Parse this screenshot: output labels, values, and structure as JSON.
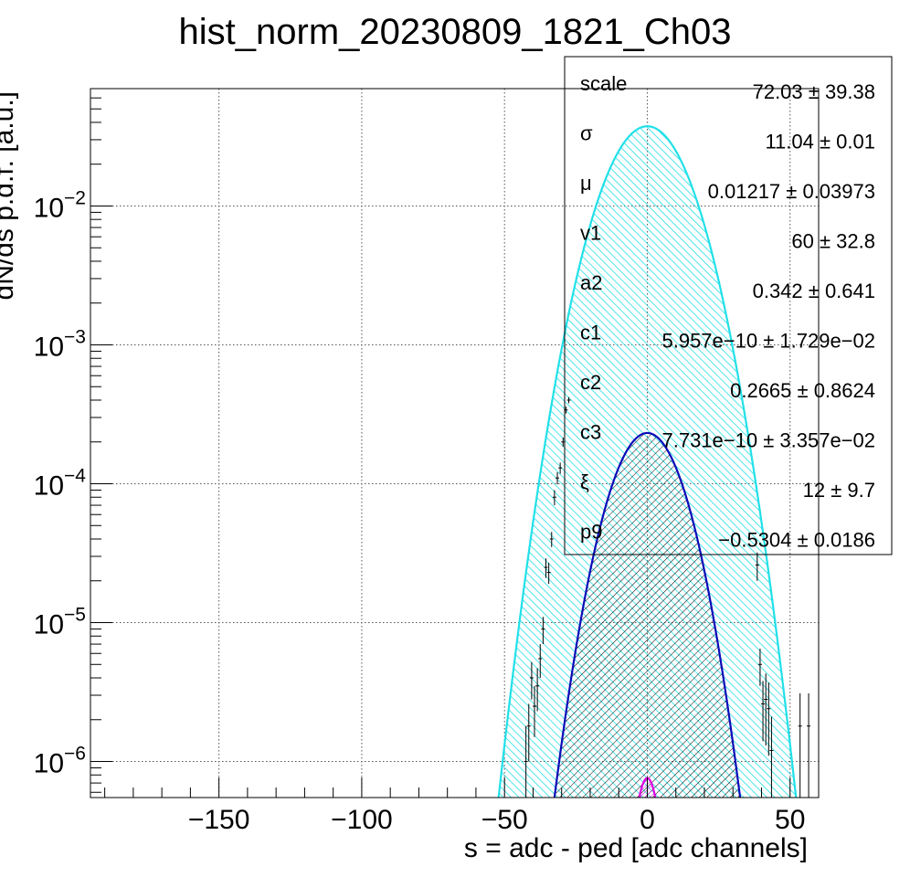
{
  "chart_data": {
    "type": "line",
    "title": "hist_norm_20230809_1821_Ch03",
    "xlabel": "s = adc - ped [adc channels]",
    "ylabel": "dN/ds p.d.f. [a.u.]",
    "xlim": [
      -195,
      60
    ],
    "ylim": [
      5.5e-07,
      0.07
    ],
    "yscale": "log",
    "grid": true,
    "x_ticks": [
      -150,
      -100,
      -50,
      0,
      50
    ],
    "x_tick_labels": [
      "−150",
      "−100",
      "−50",
      "0",
      "50"
    ],
    "y_ticks": [
      {
        "base": "10",
        "exp": "−2",
        "value": 0.01
      },
      {
        "base": "10",
        "exp": "−3",
        "value": 0.001
      },
      {
        "base": "10",
        "exp": "−4",
        "value": 0.0001
      },
      {
        "base": "10",
        "exp": "−5",
        "value": 1e-05
      },
      {
        "base": "10",
        "exp": "−6",
        "value": 1e-06
      }
    ],
    "curves": [
      {
        "color": "#21e0e8",
        "fill": "hatched",
        "peak_x": 0,
        "peak_y": 0.0375,
        "sigma": 11.04
      },
      {
        "color": "#0b0bb8",
        "fill": "hatched",
        "peak_x": 0,
        "peak_y": 0.000232,
        "sigma": 9.35
      },
      {
        "color": "#e000e0",
        "fill": "hatched",
        "peak_x": 0,
        "peak_y": 7.6e-07,
        "sigma": 3.5
      }
    ],
    "data_points": [
      {
        "x": -42.5,
        "y": 1e-06,
        "err": 8e-07
      },
      {
        "x": -41.5,
        "y": 1.8e-06,
        "err": 8e-07
      },
      {
        "x": -40.5,
        "y": 4e-06,
        "err": 1.2e-06
      },
      {
        "x": -39.5,
        "y": 2.5e-06,
        "err": 1e-06
      },
      {
        "x": -38.5,
        "y": 3.5e-06,
        "err": 1.2e-06
      },
      {
        "x": -37.5,
        "y": 5.5e-06,
        "err": 1.5e-06
      },
      {
        "x": -36.5,
        "y": 9e-06,
        "err": 2e-06
      },
      {
        "x": -35.5,
        "y": 2.5e-05,
        "err": 4e-06
      },
      {
        "x": -34.5,
        "y": 2.3e-05,
        "err": 4e-06
      },
      {
        "x": -33.5,
        "y": 4e-05,
        "err": 5e-06
      },
      {
        "x": -32.5,
        "y": 8e-05,
        "err": 1e-05
      },
      {
        "x": -31.5,
        "y": 0.00011,
        "err": 1.1e-05
      },
      {
        "x": -30.5,
        "y": 0.00013,
        "err": 1.2e-05
      },
      {
        "x": -29.5,
        "y": 0.0002,
        "err": 1.5e-05
      },
      {
        "x": -28.5,
        "y": 0.00034,
        "err": 2e-05
      },
      {
        "x": -27.5,
        "y": 0.0004,
        "err": 2e-05
      },
      {
        "x": 38.5,
        "y": 2.6e-05,
        "err": 6e-06
      },
      {
        "x": 39.5,
        "y": 5e-06,
        "err": 1.5e-06
      },
      {
        "x": 40.5,
        "y": 2.6e-06,
        "err": 1.2e-06
      },
      {
        "x": 41.5,
        "y": 2.8e-06,
        "err": 1.5e-06
      },
      {
        "x": 42.5,
        "y": 2.4e-06,
        "err": 1.3e-06
      },
      {
        "x": 43.5,
        "y": 1.2e-06,
        "err": 9e-07
      },
      {
        "x": 53.5,
        "y": 1.8e-06,
        "err": 1.3e-06
      },
      {
        "x": 56.5,
        "y": 1.8e-06,
        "err": 1.3e-06
      }
    ],
    "stats": [
      {
        "name": "scale",
        "value": "72.03 ± 39.38"
      },
      {
        "name": "σ",
        "value": "11.04 ± 0.01"
      },
      {
        "name": "μ",
        "value": "0.01217 ± 0.03973"
      },
      {
        "name": "v1",
        "value": "60 ± 32.8"
      },
      {
        "name": "a2",
        "value": "0.342 ± 0.641"
      },
      {
        "name": "c1",
        "value": "5.957e−10 ± 1.729e−02"
      },
      {
        "name": "c2",
        "value": "0.2665 ± 0.8624"
      },
      {
        "name": "c3",
        "value": "7.731e−10 ± 3.357e−02"
      },
      {
        "name": "ξ",
        "value": "12 ± 9.7"
      },
      {
        "name": "p9",
        "value": "−0.5304 ± 0.0186"
      }
    ]
  }
}
